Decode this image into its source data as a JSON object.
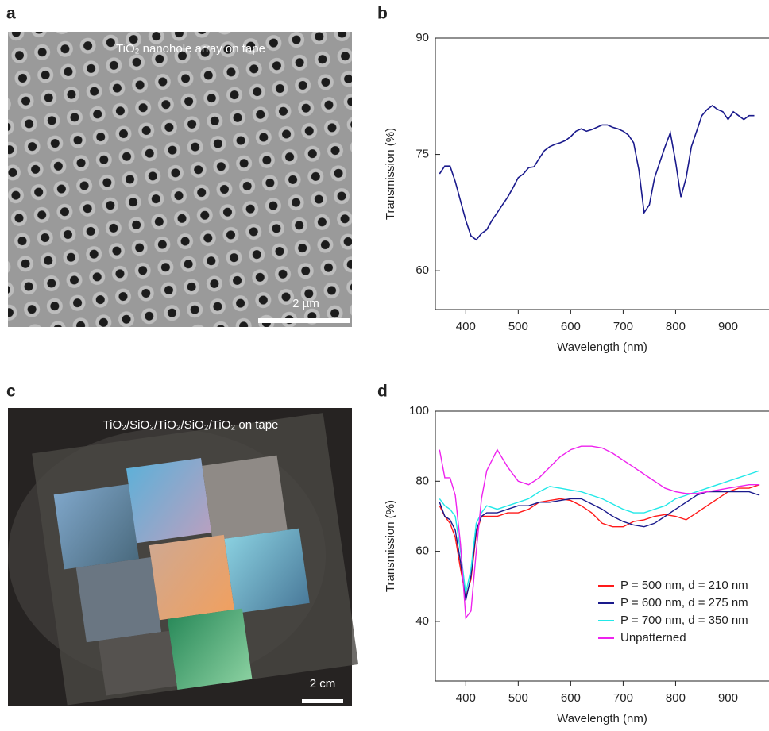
{
  "panel_labels": [
    "a",
    "b",
    "c",
    "d"
  ],
  "images": {
    "a": {
      "caption": "TiO₂ nanohole array on tape",
      "scale_bar": "2 µm"
    },
    "c": {
      "caption": "TiO₂/SiO₂/TiO₂/SiO₂/TiO₂ on tape",
      "scale_bar": "2 cm"
    }
  },
  "chart_data": [
    {
      "type": "line",
      "xlabel": "Wavelength (nm)",
      "ylabel": "Transmission (%)",
      "color": "#1a1a8c",
      "xlim": [
        342,
        978
      ],
      "ylim": [
        55,
        90
      ],
      "xticks": [
        400,
        500,
        600,
        700,
        800,
        900
      ],
      "yticks": [
        60,
        75,
        90
      ],
      "x": [
        350,
        360,
        370,
        380,
        390,
        400,
        410,
        420,
        430,
        440,
        450,
        460,
        470,
        480,
        490,
        500,
        510,
        520,
        530,
        540,
        550,
        560,
        570,
        580,
        590,
        600,
        610,
        620,
        630,
        640,
        650,
        660,
        670,
        680,
        690,
        700,
        710,
        720,
        730,
        740,
        750,
        760,
        770,
        780,
        790,
        800,
        810,
        820,
        830,
        840,
        850,
        860,
        870,
        880,
        890,
        900,
        910,
        920,
        930,
        940,
        950
      ],
      "values": [
        72.5,
        73.5,
        73.5,
        71.5,
        69,
        66.5,
        64.5,
        64,
        64.8,
        65.3,
        66.5,
        67.5,
        68.5,
        69.5,
        70.7,
        72,
        72.5,
        73.3,
        73.4,
        74.5,
        75.5,
        76,
        76.3,
        76.5,
        76.8,
        77.3,
        78,
        78.3,
        78,
        78.2,
        78.5,
        78.8,
        78.8,
        78.5,
        78.3,
        78,
        77.5,
        76.5,
        73,
        67.5,
        68.5,
        72,
        74,
        76,
        77.8,
        74,
        69.5,
        72,
        76,
        78,
        80,
        80.8,
        81.3,
        80.8,
        80.5,
        79.5,
        80.5,
        80,
        79.5,
        80,
        80
      ]
    },
    {
      "type": "line",
      "xlabel": "Wavelength (nm)",
      "ylabel": "Transmission (%)",
      "legend": "lower right",
      "xlim": [
        342,
        978
      ],
      "ylim": [
        23,
        100
      ],
      "xticks": [
        400,
        500,
        600,
        700,
        800,
        900
      ],
      "yticks": [
        40,
        60,
        80,
        100
      ],
      "x": [
        350,
        360,
        370,
        380,
        390,
        400,
        410,
        420,
        430,
        440,
        460,
        480,
        500,
        520,
        540,
        560,
        580,
        600,
        620,
        640,
        660,
        680,
        700,
        720,
        740,
        760,
        780,
        800,
        820,
        840,
        860,
        880,
        900,
        920,
        940,
        960
      ],
      "series": [
        {
          "name": "P = 500 nm, d = 210 nm",
          "color": "#ff1a1a",
          "values": [
            73,
            70,
            68,
            64,
            55,
            47,
            52,
            65,
            70,
            70,
            70,
            71,
            71,
            72,
            74,
            74.5,
            75,
            74.5,
            73,
            71,
            68,
            67,
            67,
            68.5,
            69,
            70,
            70.5,
            70,
            69,
            71,
            73,
            75,
            77,
            78,
            78,
            79
          ]
        },
        {
          "name": "P = 600 nm, d = 275 nm",
          "color": "#1a1a8c",
          "values": [
            74,
            70,
            69,
            66,
            57,
            46,
            53,
            66,
            70,
            71,
            71,
            72,
            73,
            73,
            74,
            74,
            74.5,
            75,
            75,
            73.5,
            72,
            70,
            68.5,
            67.5,
            67,
            68,
            70,
            72,
            74,
            76,
            77,
            77,
            77,
            77,
            77,
            76
          ]
        },
        {
          "name": "P = 700 nm, d = 350 nm",
          "color": "#22e8e8",
          "values": [
            75,
            73,
            72,
            70,
            60,
            48,
            55,
            68,
            71,
            73,
            72,
            73,
            74,
            75,
            77,
            78.5,
            78,
            77.5,
            77,
            76,
            75,
            73.5,
            72,
            71,
            71,
            72,
            73,
            75,
            76,
            77,
            78,
            79,
            80,
            81,
            82,
            83
          ]
        },
        {
          "name": "Unpatterned",
          "color": "#ee22ee",
          "values": [
            89,
            81,
            81,
            76,
            62,
            41,
            43,
            60,
            75,
            83,
            89,
            84,
            80,
            79,
            81,
            84,
            87,
            89,
            90,
            90,
            89.5,
            88,
            86,
            84,
            82,
            80,
            78,
            77,
            76.5,
            76.5,
            77,
            77.5,
            78,
            78.5,
            79,
            79
          ]
        }
      ]
    }
  ]
}
